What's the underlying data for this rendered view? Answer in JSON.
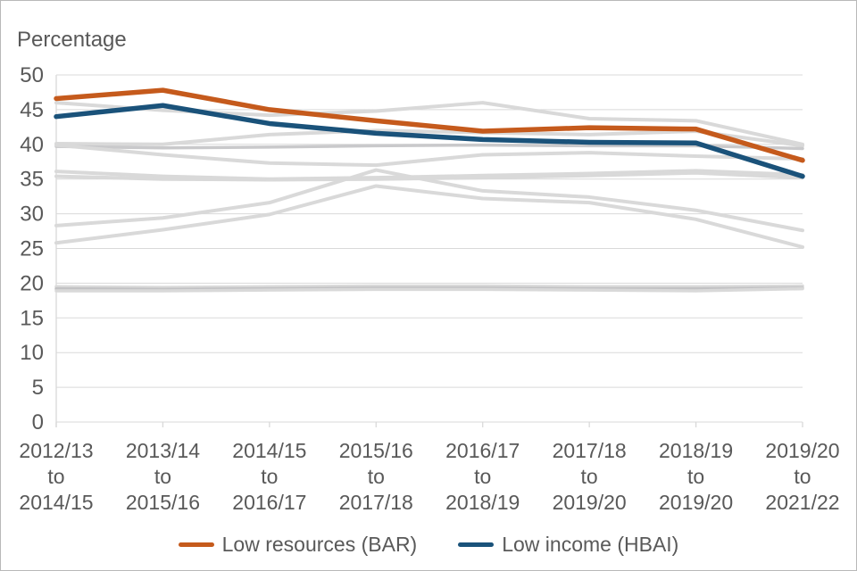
{
  "chart": {
    "y_axis_title": "Percentage",
    "legend": [
      {
        "label": "Low resources (BAR)",
        "color": "#C55A1C"
      },
      {
        "label": "Low income (HBAI)",
        "color": "#1A527A"
      }
    ]
  },
  "chart_data": {
    "type": "line",
    "title": "",
    "ylabel": "Percentage",
    "xlabel": "",
    "ylim": [
      0,
      50
    ],
    "ytick_step": 5,
    "grid": "horizontal",
    "legend_position": "bottom",
    "categories": [
      [
        "2012/13",
        "to",
        "2014/15"
      ],
      [
        "2013/14",
        "to",
        "2015/16"
      ],
      [
        "2014/15",
        "to",
        "2016/17"
      ],
      [
        "2015/16",
        "to",
        "2017/18"
      ],
      [
        "2016/17",
        "to",
        "2018/19"
      ],
      [
        "2017/18",
        "to",
        "2019/20"
      ],
      [
        "2018/19",
        "to",
        "2019/20"
      ],
      [
        "2019/20",
        "to",
        "2021/22"
      ]
    ],
    "series": [
      {
        "id": "context-1",
        "color": "#D9D9D9",
        "width": 4,
        "values": [
          46.0,
          44.9,
          44.2,
          44.8,
          46.0,
          43.7,
          43.4,
          40.0
        ]
      },
      {
        "id": "context-2",
        "color": "#D9D9D9",
        "width": 4,
        "values": [
          40.1,
          40.0,
          41.4,
          42.0,
          41.7,
          41.4,
          41.9,
          39.8
        ]
      },
      {
        "id": "context-3",
        "color": "#C9C9CB",
        "width": 3.5,
        "values": [
          39.7,
          39.5,
          39.6,
          39.8,
          39.9,
          39.8,
          39.8,
          39.4
        ]
      },
      {
        "id": "context-4",
        "color": "#D9D9D9",
        "width": 4,
        "values": [
          39.9,
          38.5,
          37.3,
          37.0,
          38.5,
          38.8,
          38.3,
          37.9
        ]
      },
      {
        "id": "context-5",
        "color": "#D9D9D9",
        "width": 4,
        "values": [
          36.1,
          35.4,
          35.0,
          35.2,
          35.5,
          35.8,
          36.2,
          35.6
        ]
      },
      {
        "id": "context-6",
        "color": "#D9D9D9",
        "width": 4,
        "values": [
          35.4,
          35.0,
          34.9,
          35.0,
          35.2,
          35.5,
          35.9,
          35.2
        ]
      },
      {
        "id": "context-7",
        "color": "#D9D9D9",
        "width": 4,
        "values": [
          28.3,
          29.4,
          31.6,
          36.3,
          33.3,
          32.4,
          30.5,
          27.6
        ]
      },
      {
        "id": "context-8",
        "color": "#D9D9D9",
        "width": 4,
        "values": [
          25.8,
          27.7,
          29.9,
          34.0,
          32.2,
          31.6,
          29.2,
          25.2
        ]
      },
      {
        "id": "context-9",
        "color": "#D9D9D9",
        "width": 3.5,
        "values": [
          19.5,
          19.4,
          19.5,
          19.6,
          19.6,
          19.5,
          19.5,
          19.6
        ]
      },
      {
        "id": "context-10",
        "color": "#C2C2C4",
        "width": 3.5,
        "values": [
          19.2,
          19.1,
          19.2,
          19.3,
          19.3,
          19.2,
          19.2,
          19.3
        ]
      },
      {
        "id": "context-11",
        "color": "#D9D9D9",
        "width": 3.5,
        "values": [
          18.9,
          18.9,
          19.0,
          19.1,
          19.1,
          19.0,
          18.9,
          19.2
        ]
      },
      {
        "id": "low-resources-bar",
        "name": "Low resources (BAR)",
        "color": "#C55A1C",
        "width": 5.5,
        "values": [
          46.6,
          47.8,
          45.0,
          43.4,
          41.9,
          42.4,
          42.2,
          37.7
        ]
      },
      {
        "id": "low-income-hbai",
        "name": "Low income (HBAI)",
        "color": "#1A527A",
        "width": 5.5,
        "values": [
          44.0,
          45.6,
          43.0,
          41.6,
          40.7,
          40.3,
          40.2,
          35.4
        ]
      }
    ],
    "axis_color": "#D9D9D9",
    "grid_color": "#D9D9D9",
    "tick_label_color": "#595959"
  }
}
